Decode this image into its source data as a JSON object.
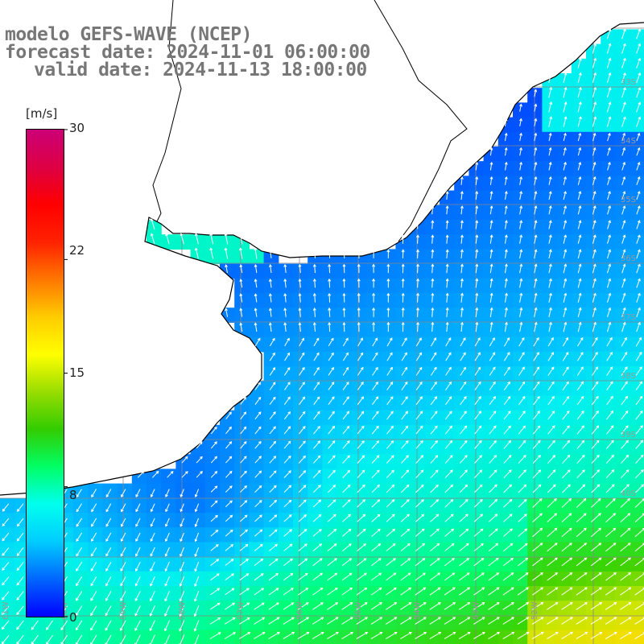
{
  "title": {
    "model": "modelo GEFS-WAVE (NCEP)",
    "forecast": "forecast date: 2024-11-01 06:00:00",
    "valid": "valid date: 2024-11-13 18:00:00"
  },
  "colorbar": {
    "unit": "[m/s]",
    "ticks": [
      "30",
      "22",
      "15",
      "8",
      "0"
    ],
    "tick_values": [
      30,
      22,
      15,
      8,
      0
    ],
    "range": [
      0,
      30
    ],
    "colors": [
      "#0000ff",
      "#0066ff",
      "#00ccff",
      "#00ffee",
      "#00ff66",
      "#33cc00",
      "#99dd00",
      "#ffff00",
      "#ffcc00",
      "#ff7700",
      "#ff2200",
      "#ff0000",
      "#dd0044",
      "#cc0077"
    ]
  },
  "lat_labels": [
    "33S",
    "34S",
    "35S",
    "36S",
    "37S",
    "38S",
    "39S",
    "40S"
  ],
  "lon_labels": [
    "61W",
    "60W",
    "59W",
    "58W",
    "57W",
    "56W",
    "55W",
    "54W",
    "53W",
    "52W"
  ],
  "map": {
    "land_color": "#ffffff",
    "grid_color": "#888888",
    "coast_color": "#000000",
    "arrow_color": "#ffffff"
  }
}
